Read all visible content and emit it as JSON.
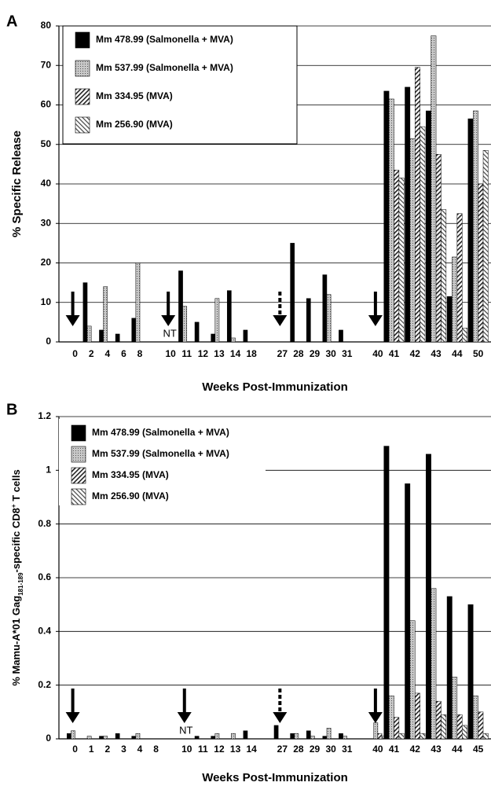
{
  "chart_data": [
    {
      "type": "bar",
      "panel_label": "A",
      "ylabel": "% Specific Release",
      "xlabel": "Weeks Post-Immunization",
      "categories": [
        "0",
        "2",
        "4",
        "6",
        "8",
        "10",
        "11",
        "12",
        "13",
        "14",
        "18",
        "27",
        "28",
        "29",
        "30",
        "31",
        "40",
        "41",
        "42",
        "43",
        "44",
        "50"
      ],
      "series": [
        {
          "name": "Mm 478.99 (Salmonella + MVA)",
          "color": "#000000",
          "pattern": "solid",
          "values": [
            null,
            15,
            3,
            2,
            6,
            null,
            18,
            5,
            2,
            13,
            3,
            null,
            25,
            11,
            17,
            3,
            null,
            63.5,
            64.5,
            58.5,
            11.5,
            56.5
          ]
        },
        {
          "name": "Mm 537.99 (Salmonella + MVA)",
          "color": "#a8a8a8",
          "pattern": "dots",
          "values": [
            null,
            4,
            14,
            null,
            20,
            null,
            9,
            null,
            11,
            1,
            null,
            null,
            null,
            null,
            12,
            null,
            null,
            61.5,
            51.5,
            77.5,
            21.5,
            58.5
          ]
        },
        {
          "name": "Mm 334.95 (MVA)",
          "color": "#333333",
          "pattern": "hatch",
          "values": [
            null,
            null,
            null,
            null,
            null,
            null,
            null,
            null,
            null,
            null,
            null,
            null,
            null,
            null,
            null,
            null,
            null,
            43.5,
            69.5,
            47.5,
            32.5,
            40
          ]
        },
        {
          "name": "Mm 256.90 (MVA)",
          "color": "#555555",
          "pattern": "backhatch",
          "values": [
            null,
            null,
            null,
            null,
            null,
            null,
            null,
            null,
            null,
            null,
            null,
            null,
            null,
            null,
            null,
            null,
            null,
            41.5,
            54.5,
            33.5,
            3.5,
            48.5
          ]
        }
      ],
      "annotation": "NT",
      "ylim": [
        0,
        80
      ],
      "yticks": [
        0,
        10,
        20,
        30,
        40,
        50,
        60,
        70,
        80
      ],
      "grid": true,
      "legend": "upper left",
      "legend_frame": true
    },
    {
      "type": "bar",
      "panel_label": "B",
      "ylabel": [
        "% Mamu-A*01 Gag",
        "181-189",
        "-specific CD8",
        "+",
        " T cells"
      ],
      "xlabel": "Weeks Post-Immunization",
      "categories": [
        "0",
        "1",
        "2",
        "3",
        "4",
        "8",
        "10",
        "11",
        "12",
        "13",
        "14",
        "27",
        "28",
        "29",
        "30",
        "31",
        "40",
        "41",
        "42",
        "43",
        "44",
        "45"
      ],
      "series": [
        {
          "name": "Mm 478.99 (Salmonella + MVA)",
          "color": "#000000",
          "pattern": "solid",
          "values": [
            0.02,
            null,
            0.01,
            0.02,
            0.01,
            null,
            null,
            0.01,
            0.01,
            null,
            0.03,
            0.05,
            0.02,
            0.03,
            0.01,
            0.02,
            null,
            1.09,
            0.95,
            1.06,
            0.53,
            0.5
          ]
        },
        {
          "name": "Mm 537.99 (Salmonella + MVA)",
          "color": "#a8a8a8",
          "pattern": "dots",
          "values": [
            0.03,
            0.01,
            0.01,
            null,
            0.02,
            null,
            null,
            null,
            0.02,
            0.02,
            null,
            null,
            0.02,
            0.01,
            0.04,
            0.01,
            0.06,
            0.16,
            0.44,
            0.56,
            0.23,
            0.16
          ]
        },
        {
          "name": "Mm 334.95 (MVA)",
          "color": "#333333",
          "pattern": "hatch",
          "values": [
            null,
            null,
            null,
            null,
            null,
            null,
            null,
            null,
            null,
            null,
            null,
            null,
            null,
            null,
            null,
            null,
            0.02,
            0.08,
            0.17,
            0.14,
            0.09,
            0.1
          ]
        },
        {
          "name": "Mm 256.90 (MVA)",
          "color": "#555555",
          "pattern": "backhatch",
          "values": [
            null,
            null,
            null,
            null,
            null,
            null,
            null,
            null,
            null,
            null,
            null,
            null,
            null,
            null,
            null,
            null,
            0.01,
            0.02,
            0.02,
            0.09,
            0.05,
            0.02
          ]
        }
      ],
      "annotation": "NT",
      "ylim": [
        0,
        1.2
      ],
      "yticks": [
        0,
        0.2,
        0.4,
        0.6,
        0.8,
        1,
        1.2
      ],
      "grid": true,
      "legend": "upper left",
      "legend_frame": false
    }
  ]
}
